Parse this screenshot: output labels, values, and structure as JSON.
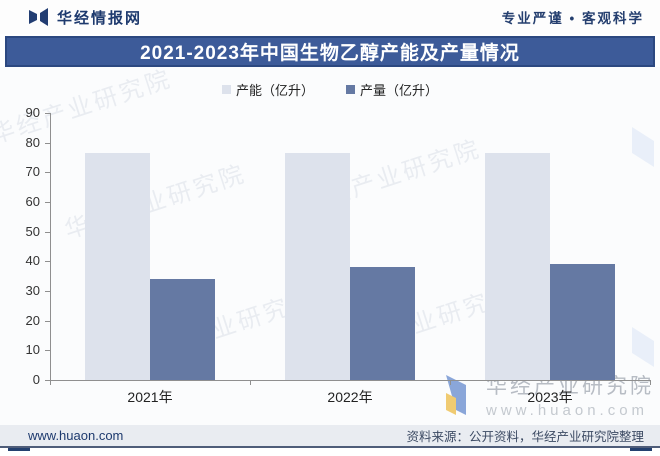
{
  "header": {
    "brand": "华经情报网",
    "slogan": "专业严谨 • 客观科学"
  },
  "banner": {
    "title": "2021-2023年中国生物乙醇产能及产量情况"
  },
  "chart_data": {
    "type": "bar",
    "title": "2021-2023年中国生物乙醇产能及产量情况",
    "categories": [
      "2021年",
      "2022年",
      "2023年"
    ],
    "series": [
      {
        "name": "产能（亿升）",
        "values": [
          76.5,
          76.5,
          76.5
        ],
        "color": "#dde2ec"
      },
      {
        "name": "产量（亿升）",
        "values": [
          34,
          38,
          39
        ],
        "color": "#6579a3"
      }
    ],
    "xlabel": "",
    "ylabel": "",
    "ylim": [
      0,
      90
    ],
    "ytick_step": 10,
    "grid": false,
    "legend_position": "top"
  },
  "watermark": {
    "org": "华经产业研究院",
    "site": "www.huaon.com"
  },
  "footer": {
    "site": "www.huaon.com",
    "source": "资料来源：公开资料，华经产业研究院整理"
  },
  "colors": {
    "banner_blue": "#3d5b99",
    "capacity_bar": "#dde2ec",
    "output_bar": "#6579a3",
    "navy_text": "#1e3a6e"
  }
}
